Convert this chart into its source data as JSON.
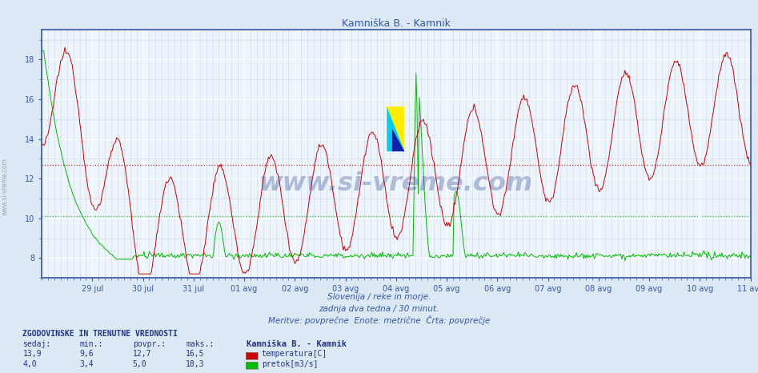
{
  "title": "Kamniška B. - Kamnik",
  "bg_color": "#dce9f5",
  "plot_bg_color": "#eef4fb",
  "grid_major_color": "#ffffff",
  "grid_minor_color": "#c8d8ec",
  "axis_color": "#3355aa",
  "tick_color": "#3355aa",
  "xlabel_texts": [
    "29 jul",
    "30 jul",
    "31 jul",
    "01 avg",
    "02 avg",
    "03 avg",
    "04 avg",
    "05 avg",
    "06 avg",
    "07 avg",
    "08 avg",
    "09 avg",
    "10 avg",
    "11 avg"
  ],
  "yticks": [
    8,
    10,
    12,
    14,
    16,
    18
  ],
  "ylim": [
    7.0,
    19.5
  ],
  "temp_avg": 12.7,
  "pretok_avg_scaled": 4.8,
  "footer_lines": [
    "Slovenija / reke in morje.",
    "zadnja dva tedna / 30 minut.",
    "Meritve: povprečne  Enote: metrične  Črta: povprečje"
  ],
  "bottom_title": "ZGODOVINSKE IN TRENUTNE VREDNOSTI",
  "bottom_headers": [
    "sedaj:",
    "min.:",
    "povpr.:",
    "maks.:"
  ],
  "bottom_row1": [
    "13,9",
    "9,6",
    "12,7",
    "16,5"
  ],
  "bottom_row2": [
    "4,0",
    "3,4",
    "5,0",
    "18,3"
  ],
  "bottom_label1": "Kamniška B. - Kamnik",
  "bottom_label2": "temperatura[C]",
  "bottom_label3": "pretok[m3/s]",
  "temp_color": "#cc0000",
  "pretok_color": "#00bb00",
  "watermark": "www.si-vreme.com",
  "watermark_color": "#1a3a8a",
  "n_days": 14,
  "pts_per_day": 48
}
